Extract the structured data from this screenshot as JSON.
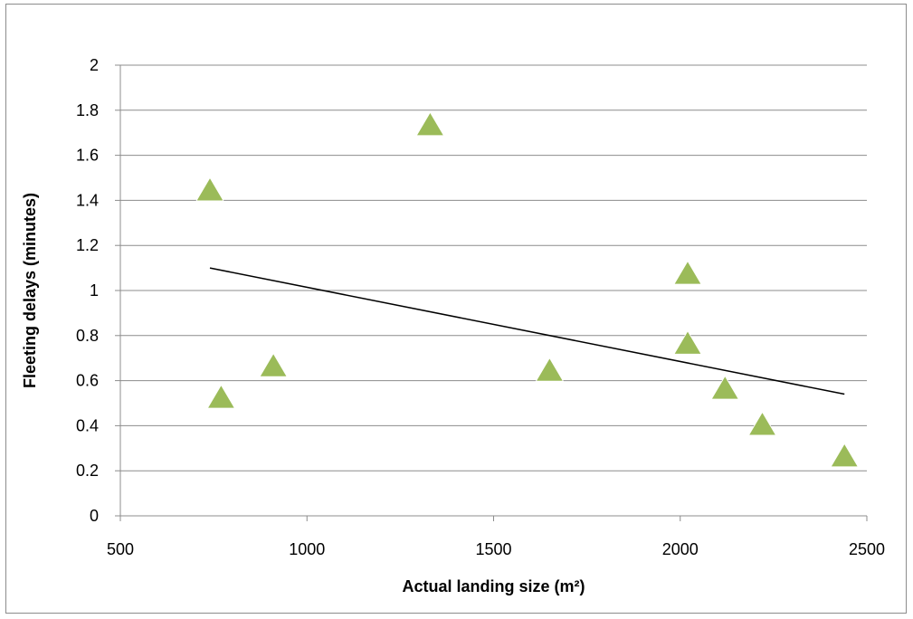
{
  "chart_data": {
    "type": "scatter",
    "xlabel": "Actual landing size (m²)",
    "ylabel": "Fleeting delays (minutes)",
    "xlim": [
      500,
      2500
    ],
    "ylim": [
      0,
      2
    ],
    "x_ticks": [
      "500",
      "1000",
      "1500",
      "2000",
      "2500"
    ],
    "y_ticks": [
      "0",
      "0.2",
      "0.4",
      "0.6",
      "0.8",
      "1",
      "1.2",
      "1.4",
      "1.6",
      "1.8",
      "2"
    ],
    "grid": "horizontal",
    "marker": "triangle",
    "marker_color": "#9BBB59",
    "series": [
      {
        "points": [
          {
            "x": 740,
            "y": 1.44
          },
          {
            "x": 1330,
            "y": 1.73
          },
          {
            "x": 770,
            "y": 0.52
          },
          {
            "x": 910,
            "y": 0.66
          },
          {
            "x": 1650,
            "y": 0.64
          },
          {
            "x": 2020,
            "y": 1.07
          },
          {
            "x": 2020,
            "y": 0.76
          },
          {
            "x": 2120,
            "y": 0.56
          },
          {
            "x": 2220,
            "y": 0.4
          },
          {
            "x": 2440,
            "y": 0.26
          }
        ]
      }
    ],
    "trendline": {
      "type": "linear",
      "color": "#000000",
      "start": {
        "x": 740,
        "y": 1.1
      },
      "end": {
        "x": 2440,
        "y": 0.54
      }
    }
  }
}
